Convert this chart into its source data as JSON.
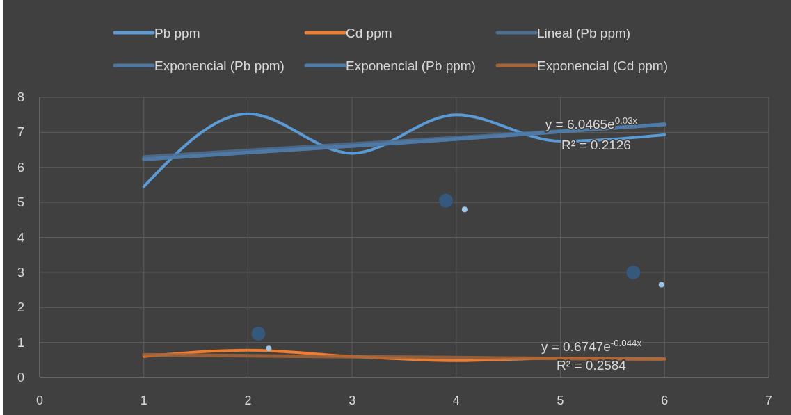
{
  "chart_data": {
    "type": "line",
    "xlim": [
      0,
      7
    ],
    "xticks": [
      0,
      1,
      2,
      3,
      4,
      5,
      6,
      7
    ],
    "ylim": [
      0,
      8
    ],
    "yticks": [
      0,
      1,
      2,
      3,
      4,
      5,
      6,
      7,
      8
    ],
    "grid": true,
    "legend": "top",
    "marker": "none",
    "series": [
      {
        "name": "Pb ppm",
        "color": "#5b9bd5",
        "x": [
          1,
          2,
          3,
          4,
          5,
          6
        ],
        "values": [
          5.45,
          7.53,
          6.4,
          7.5,
          6.75,
          6.93
        ]
      },
      {
        "name": "Cd ppm",
        "color": "#ed7d31",
        "x": [
          1,
          2,
          3,
          4,
          5,
          6
        ],
        "values": [
          0.6,
          0.78,
          0.6,
          0.48,
          0.55,
          0.53
        ]
      },
      {
        "name": "Lineal (Pb ppm)",
        "color": "#4d6f92",
        "x": [
          1,
          6
        ],
        "values": [
          6.3,
          7.22
        ]
      },
      {
        "name": "Exponencial (Pb ppm)",
        "color": "#52779f",
        "x": [
          1,
          2,
          3,
          4,
          5,
          6
        ],
        "values": [
          6.23,
          6.42,
          6.61,
          6.81,
          7.02,
          7.23
        ]
      },
      {
        "name": "Exponencial (Pb ppm)",
        "color": "#4f7ba8",
        "x": [
          1,
          2,
          3,
          4,
          5,
          6
        ],
        "values": [
          6.23,
          6.42,
          6.61,
          6.81,
          7.02,
          7.23
        ]
      },
      {
        "name": "Exponencial (Cd ppm)",
        "color": "#a5643a",
        "x": [
          1,
          2,
          3,
          4,
          5,
          6
        ],
        "values": [
          0.65,
          0.62,
          0.59,
          0.57,
          0.54,
          0.52
        ]
      },
      {
        "type": "scatter",
        "color": "#9dc3e6",
        "marker": "circle",
        "x": [
          2.2,
          4.08,
          5.97
        ],
        "values": [
          0.83,
          4.8,
          2.65
        ]
      },
      {
        "type": "scatter",
        "color": "#35597d",
        "marker": "circle",
        "x": [
          2.1,
          3.9,
          5.7
        ],
        "values": [
          1.25,
          5.05,
          3.0
        ]
      }
    ],
    "annotations": [
      "y = 6.0465e$^{0.03x}$",
      "R² = 0.2126",
      "y = 0.6747e$^{-0.044x}$",
      "R² = 0.2584"
    ]
  }
}
